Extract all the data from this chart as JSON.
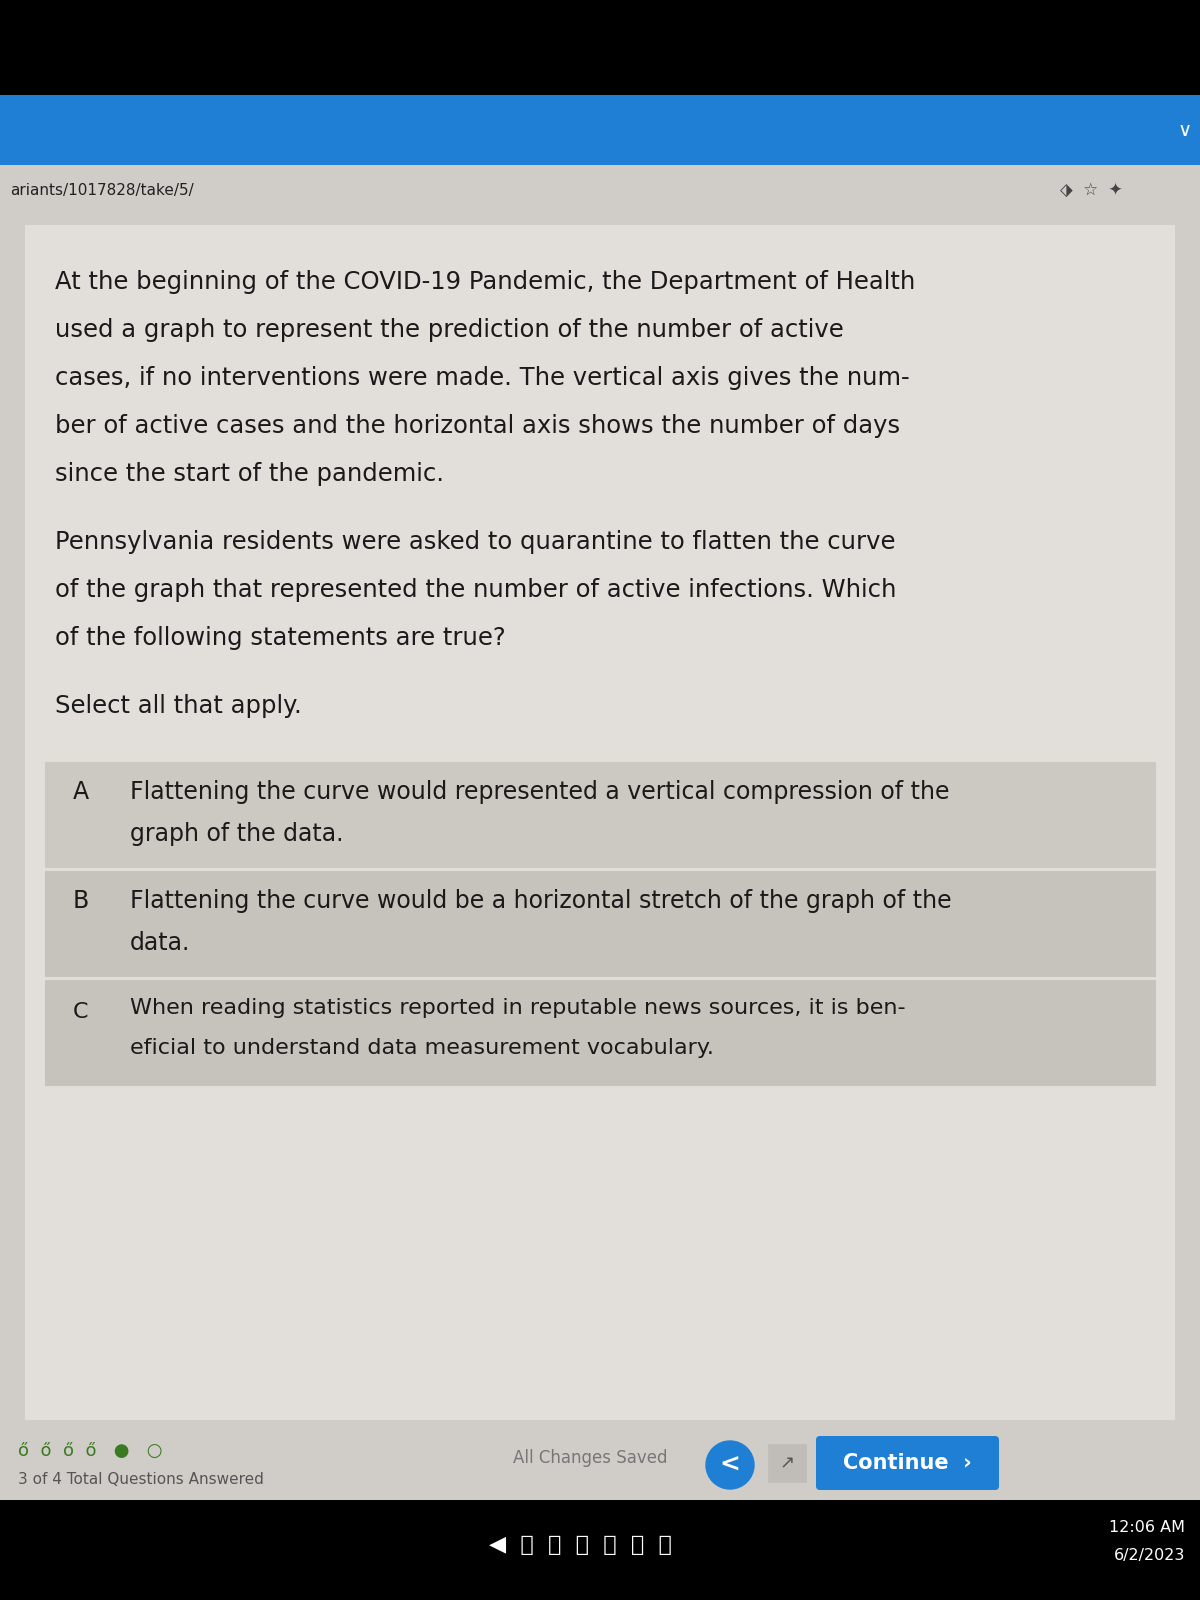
{
  "bg_top_black": "#000000",
  "bg_blue_bar": "#1e7fd4",
  "bg_browser_bar": "#d0ccc8",
  "bg_content": "#d0ccc8",
  "bg_white_content": "#e2deda",
  "url_text": "ariants/1017828/take/5/",
  "url_color": "#222222",
  "option_A_label": "A",
  "option_A_text1": "Flattening the curve would represented a vertical compression of the",
  "option_A_text2": "graph of the data.",
  "option_B_label": "B",
  "option_B_text1": "Flattening the curve would be a horizontal stretch of the graph of the",
  "option_B_text2": "data.",
  "option_C_label": "C",
  "option_C_text1": "When reading statistics reported in reputable news sources, it is ben-",
  "option_C_text2": "eficial to understand data measurement vocabulary.",
  "option_A_bg": "#ccc8c2",
  "option_B_bg": "#c6c2bc",
  "option_C_bg": "#c6c2bc",
  "option_border": "#aaa6a0",
  "footer_bg": "#d0ccc8",
  "footer_text_left": "3 of 4 Total Questions Answered",
  "footer_saved_text": "All Changes Saved",
  "continue_btn_color": "#1e7fd4",
  "continue_btn_text": "Continue",
  "taskbar_bg": "#1a1a2e",
  "time_text": "12:06 AM",
  "date_text": "6/2/2023",
  "text_color": "#1a1a1a",
  "p1_line1": "At the beginning of the COVID-19 Pandemic, the Department of Health",
  "p1_line2": "used a graph to represent the prediction of the number of active",
  "p1_line3": "cases, if no interventions were made. The vertical axis gives the num-",
  "p1_line4": "ber of active cases and the horizontal axis shows the number of days",
  "p1_line5": "since the start of the pandemic.",
  "p2_line1": "Pennsylvania residents were asked to quarantine to flatten the curve",
  "p2_line2": "of the graph that represented the number of active infections. Which",
  "p2_line3": "of the following statements are true?",
  "p3": "Select all that apply."
}
